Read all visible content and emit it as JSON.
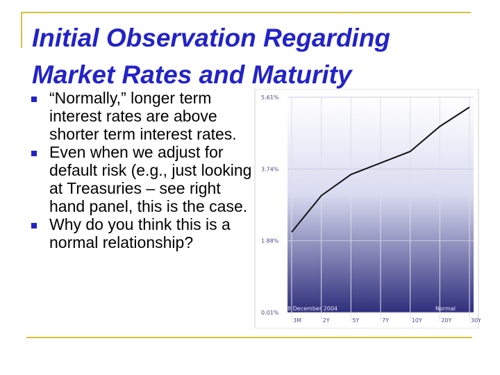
{
  "slide": {
    "title_lines": [
      "Initial Observation Regarding",
      "Market Rates and Maturity"
    ],
    "bullets": [
      "“Normally,” longer term interest rates are above shorter term interest rates.",
      "Even when we adjust for default risk (e.g., just looking at Treasuries – see right hand panel, this is the case.",
      "Why do you think this is a normal relationship?"
    ]
  },
  "colors": {
    "title": "#2323c8",
    "rules": "#d4c13a",
    "bullet": "#2323c8"
  },
  "chart_data": {
    "type": "line",
    "categories": [
      "3M",
      "2Y",
      "5Y",
      "7Y",
      "10Y",
      "20Y",
      "30Y"
    ],
    "x": [
      "3M",
      "2Y",
      "5Y",
      "7Y",
      "10Y",
      "20Y",
      "30Y"
    ],
    "series": [
      {
        "values": [
          2.1,
          3.05,
          3.6,
          3.9,
          4.2,
          4.85,
          5.35
        ]
      }
    ],
    "yticks": [
      "5.61%",
      "3.74%",
      "1.88%",
      "0.01%"
    ],
    "ylim": [
      0.01,
      5.61
    ],
    "annotations": [
      "8 December 2004",
      "Normal"
    ],
    "grid": true
  }
}
